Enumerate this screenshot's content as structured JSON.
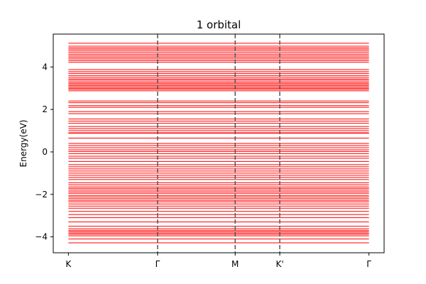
{
  "chart_data": {
    "type": "line",
    "title": "1 orbital",
    "xlabel": "",
    "ylabel": "Energy(eV)",
    "x_ticks": [
      "K",
      "Γ",
      "M",
      "K'",
      "Γ"
    ],
    "x_tick_positions": [
      0,
      1,
      1.87,
      2.37,
      3.37
    ],
    "xlim": [
      -0.17,
      3.54
    ],
    "ylim": [
      -4.75,
      5.55
    ],
    "y_ticks": [
      -4,
      -2,
      0,
      2,
      4
    ],
    "vertical_dividers_at": [
      1,
      1.87,
      2.37
    ],
    "grid": false,
    "band_color": "#ff0000",
    "divider_color": "#555555",
    "band_energies": [
      5.12,
      4.98,
      4.9,
      4.84,
      4.76,
      4.68,
      4.6,
      4.52,
      4.45,
      4.38,
      4.3,
      4.22,
      3.88,
      3.78,
      3.7,
      3.6,
      3.52,
      3.44,
      3.38,
      3.3,
      3.24,
      3.18,
      3.12,
      3.06,
      3.0,
      2.95,
      2.88,
      2.4,
      2.32,
      2.18,
      2.1,
      1.9,
      1.8,
      1.55,
      1.45,
      1.35,
      1.2,
      1.1,
      1.0,
      0.9,
      0.88,
      0.65,
      0.4,
      0.3,
      0.2,
      0.1,
      0.02,
      -0.08,
      -0.2,
      -0.3,
      -0.45,
      -0.6,
      -0.7,
      -0.8,
      -0.9,
      -1.0,
      -1.1,
      -1.2,
      -1.3,
      -1.45,
      -1.55,
      -1.65,
      -1.72,
      -1.8,
      -1.88,
      -1.95,
      -2.05,
      -2.12,
      -2.2,
      -2.28,
      -2.35,
      -2.45,
      -2.55,
      -2.65,
      -2.8,
      -2.95,
      -3.1,
      -3.3,
      -3.5,
      -3.62,
      -3.7,
      -3.76,
      -3.82,
      -3.88,
      -3.95,
      -4.1,
      -4.28
    ]
  }
}
